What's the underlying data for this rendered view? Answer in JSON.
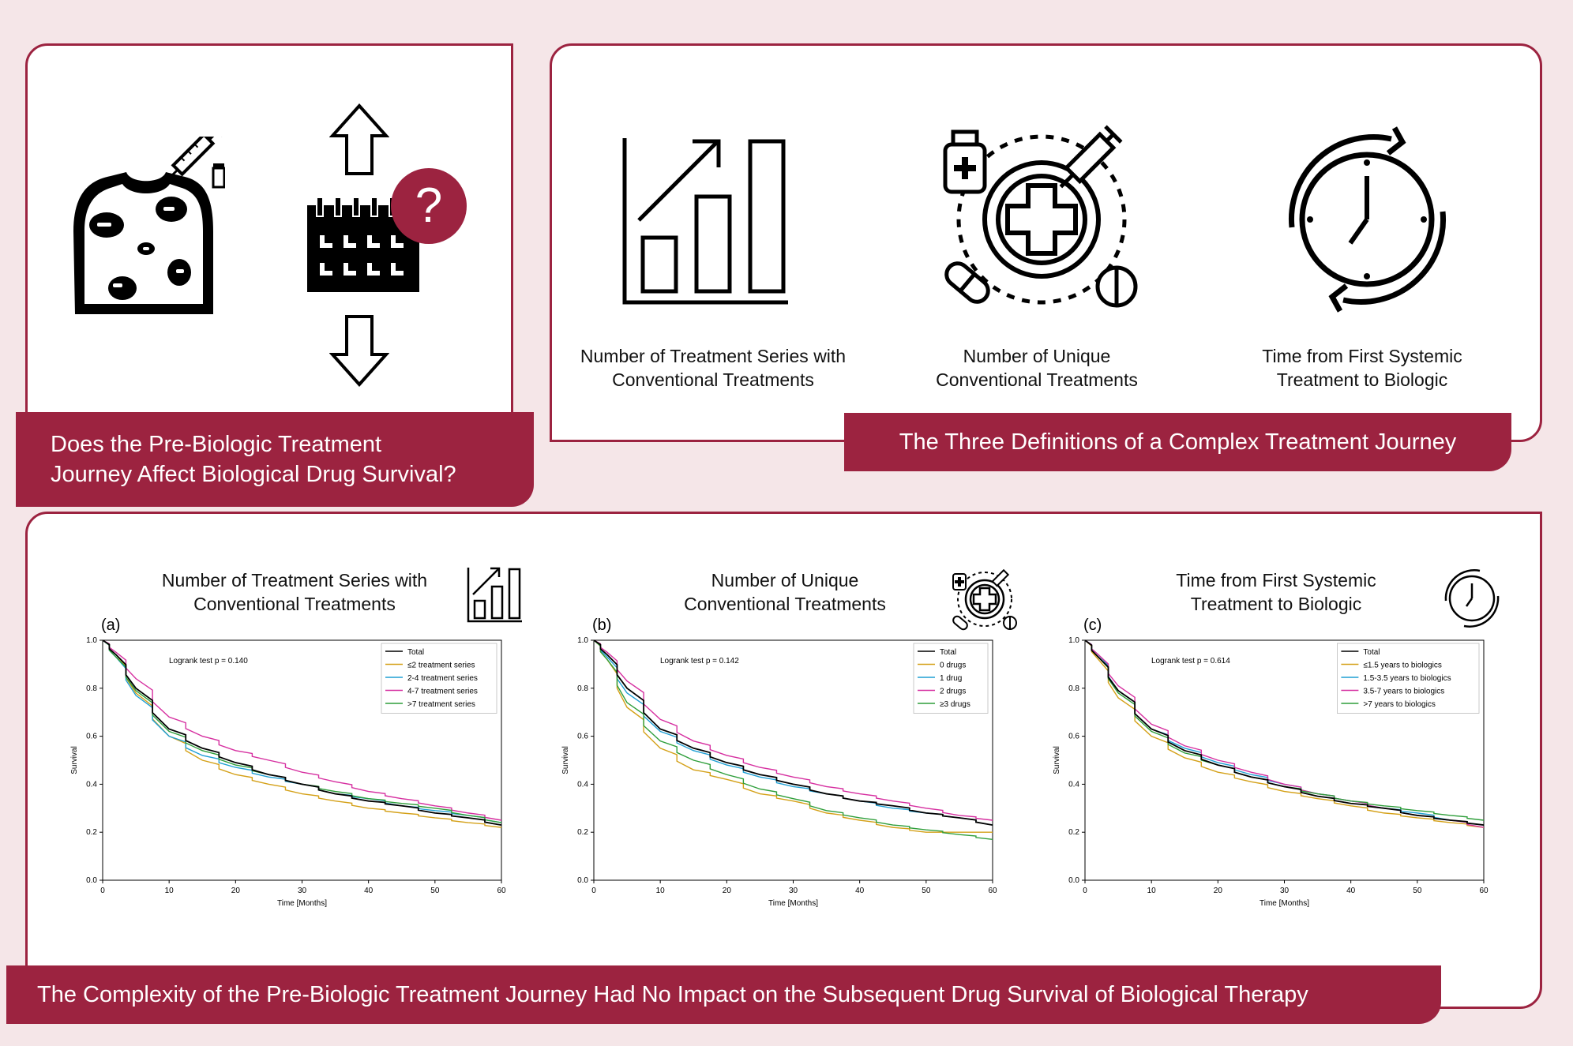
{
  "top_left": {
    "question_line1": "Does the Pre-Biologic Treatment",
    "question_line2": "Journey Affect Biological Drug Survival?",
    "question_mark": "?"
  },
  "top_right": {
    "banner": "The Three Definitions of a Complex Treatment Journey",
    "definitions": [
      {
        "line1": "Number of Treatment Series with",
        "line2": "Conventional Treatments",
        "icon": "bar-chart-icon"
      },
      {
        "line1": "Number of Unique",
        "line2": "Conventional Treatments",
        "icon": "medication-icon"
      },
      {
        "line1": "Time from First Systemic",
        "line2": "Treatment to Biologic",
        "icon": "clock-icon"
      }
    ]
  },
  "bottom": {
    "banner": "The Complexity of the Pre-Biologic Treatment Journey Had No Impact on the Subsequent Drug Survival of Biological Therapy",
    "panels": [
      {
        "letter": "(a)",
        "title1": "Number of Treatment Series with",
        "title2": "Conventional Treatments",
        "logrank": "Logrank test p = 0.140"
      },
      {
        "letter": "(b)",
        "title1": "Number of Unique",
        "title2": "Conventional Treatments",
        "logrank": "Logrank test p = 0.142"
      },
      {
        "letter": "(c)",
        "title1": "Time from First Systemic",
        "title2": "Treatment to Biologic",
        "logrank": "Logrank test p = 0.614"
      }
    ]
  },
  "colors": {
    "accent": "#9c2340",
    "background": "#f5e6e8",
    "total": "#000000",
    "orange": "#d4a017",
    "cyan": "#1f9fd4",
    "magenta": "#d62fa0",
    "green": "#2e9e3a"
  },
  "chart_data": [
    {
      "type": "line",
      "xlabel": "Time [Months]",
      "ylabel": "Survival",
      "xlim": [
        0,
        60
      ],
      "ylim": [
        0,
        1.0
      ],
      "xticks": [
        0,
        10,
        20,
        30,
        40,
        50,
        60
      ],
      "yticks": [
        0.0,
        0.2,
        0.4,
        0.6,
        0.8,
        1.0
      ],
      "legend_position": "top-right",
      "x": [
        0,
        2,
        5,
        10,
        15,
        20,
        25,
        30,
        35,
        40,
        45,
        50,
        55,
        60
      ],
      "series": [
        {
          "name": "Total",
          "color": "#000000",
          "values": [
            1.0,
            0.94,
            0.8,
            0.63,
            0.55,
            0.49,
            0.44,
            0.4,
            0.36,
            0.33,
            0.31,
            0.28,
            0.26,
            0.23
          ]
        },
        {
          "name": "≤2 treatment series",
          "color": "#d4a017",
          "values": [
            1.0,
            0.94,
            0.78,
            0.6,
            0.5,
            0.44,
            0.4,
            0.36,
            0.33,
            0.3,
            0.28,
            0.26,
            0.24,
            0.22
          ]
        },
        {
          "name": "2-4 treatment series",
          "color": "#1f9fd4",
          "values": [
            1.0,
            0.93,
            0.77,
            0.6,
            0.52,
            0.47,
            0.43,
            0.4,
            0.36,
            0.34,
            0.31,
            0.29,
            0.27,
            0.24
          ]
        },
        {
          "name": "4-7 treatment series",
          "color": "#d62fa0",
          "values": [
            1.0,
            0.95,
            0.84,
            0.68,
            0.6,
            0.54,
            0.5,
            0.45,
            0.41,
            0.37,
            0.34,
            0.31,
            0.28,
            0.25
          ]
        },
        {
          "name": ">7 treatment series",
          "color": "#2e9e3a",
          "values": [
            1.0,
            0.93,
            0.79,
            0.62,
            0.54,
            0.48,
            0.44,
            0.4,
            0.37,
            0.34,
            0.32,
            0.3,
            0.27,
            0.24
          ]
        }
      ]
    },
    {
      "type": "line",
      "xlabel": "Time [Months]",
      "ylabel": "Survival",
      "xlim": [
        0,
        60
      ],
      "ylim": [
        0,
        1.0
      ],
      "xticks": [
        0,
        10,
        20,
        30,
        40,
        50,
        60
      ],
      "yticks": [
        0.0,
        0.2,
        0.4,
        0.6,
        0.8,
        1.0
      ],
      "legend_position": "top-right",
      "x": [
        0,
        2,
        5,
        10,
        15,
        20,
        25,
        30,
        35,
        40,
        45,
        50,
        55,
        60
      ],
      "series": [
        {
          "name": "Total",
          "color": "#000000",
          "values": [
            1.0,
            0.94,
            0.8,
            0.63,
            0.55,
            0.49,
            0.44,
            0.4,
            0.36,
            0.33,
            0.31,
            0.28,
            0.26,
            0.23
          ]
        },
        {
          "name": "0 drugs",
          "color": "#d4a017",
          "values": [
            1.0,
            0.92,
            0.72,
            0.55,
            0.46,
            0.42,
            0.36,
            0.33,
            0.28,
            0.25,
            0.22,
            0.2,
            0.2,
            0.2
          ]
        },
        {
          "name": "1 drug",
          "color": "#1f9fd4",
          "values": [
            1.0,
            0.93,
            0.78,
            0.62,
            0.54,
            0.48,
            0.43,
            0.39,
            0.36,
            0.33,
            0.3,
            0.28,
            0.26,
            0.23
          ]
        },
        {
          "name": "2 drugs",
          "color": "#d62fa0",
          "values": [
            1.0,
            0.95,
            0.83,
            0.67,
            0.58,
            0.52,
            0.47,
            0.43,
            0.39,
            0.36,
            0.33,
            0.3,
            0.27,
            0.25
          ]
        },
        {
          "name": "≥3 drugs",
          "color": "#2e9e3a",
          "values": [
            1.0,
            0.92,
            0.74,
            0.58,
            0.5,
            0.44,
            0.38,
            0.34,
            0.29,
            0.26,
            0.23,
            0.21,
            0.19,
            0.17
          ]
        }
      ]
    },
    {
      "type": "line",
      "xlabel": "Time [Months]",
      "ylabel": "Survival",
      "xlim": [
        0,
        60
      ],
      "ylim": [
        0,
        1.0
      ],
      "xticks": [
        0,
        10,
        20,
        30,
        40,
        50,
        60
      ],
      "yticks": [
        0.0,
        0.2,
        0.4,
        0.6,
        0.8,
        1.0
      ],
      "legend_position": "top-right",
      "x": [
        0,
        2,
        5,
        10,
        15,
        20,
        25,
        30,
        35,
        40,
        45,
        50,
        55,
        60
      ],
      "series": [
        {
          "name": "Total",
          "color": "#000000",
          "values": [
            1.0,
            0.93,
            0.79,
            0.63,
            0.54,
            0.48,
            0.43,
            0.39,
            0.35,
            0.32,
            0.3,
            0.27,
            0.25,
            0.23
          ]
        },
        {
          "name": "≤1.5 years to biologics",
          "color": "#d4a017",
          "values": [
            1.0,
            0.92,
            0.76,
            0.6,
            0.51,
            0.45,
            0.41,
            0.37,
            0.34,
            0.31,
            0.28,
            0.26,
            0.24,
            0.22
          ]
        },
        {
          "name": "1.5-3.5 years to biologics",
          "color": "#1f9fd4",
          "values": [
            1.0,
            0.94,
            0.79,
            0.63,
            0.55,
            0.49,
            0.44,
            0.4,
            0.36,
            0.33,
            0.3,
            0.28,
            0.25,
            0.23
          ]
        },
        {
          "name": "3.5-7 years to biologics",
          "color": "#d62fa0",
          "values": [
            1.0,
            0.94,
            0.81,
            0.65,
            0.56,
            0.5,
            0.45,
            0.4,
            0.36,
            0.33,
            0.3,
            0.27,
            0.25,
            0.22
          ]
        },
        {
          "name": ">7 years to biologics",
          "color": "#2e9e3a",
          "values": [
            1.0,
            0.93,
            0.78,
            0.62,
            0.53,
            0.48,
            0.43,
            0.39,
            0.36,
            0.33,
            0.31,
            0.29,
            0.27,
            0.25
          ]
        }
      ]
    }
  ]
}
